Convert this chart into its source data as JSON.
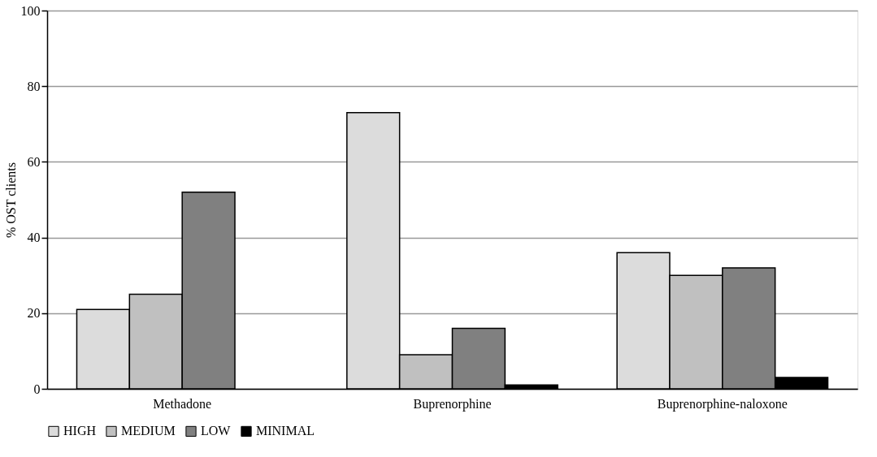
{
  "chart_data": {
    "type": "bar",
    "ylabel": "% OST clients",
    "categories": [
      "Methadone",
      "Buprenorphine",
      "Buprenorphine-naloxone"
    ],
    "series": [
      {
        "name": "HIGH",
        "color": "#dcdcdc",
        "values": [
          21,
          73,
          36
        ]
      },
      {
        "name": "MEDIUM",
        "color": "#c0c0c0",
        "values": [
          25,
          9,
          30
        ]
      },
      {
        "name": "LOW",
        "color": "#808080",
        "values": [
          52,
          16,
          32
        ]
      },
      {
        "name": "MINIMAL",
        "color": "#000000",
        "values": [
          null,
          1,
          3
        ]
      }
    ],
    "ylim": [
      0,
      100
    ],
    "yticks": [
      0,
      20,
      40,
      60,
      80,
      100
    ],
    "grid": "y",
    "legend": "bottom"
  }
}
